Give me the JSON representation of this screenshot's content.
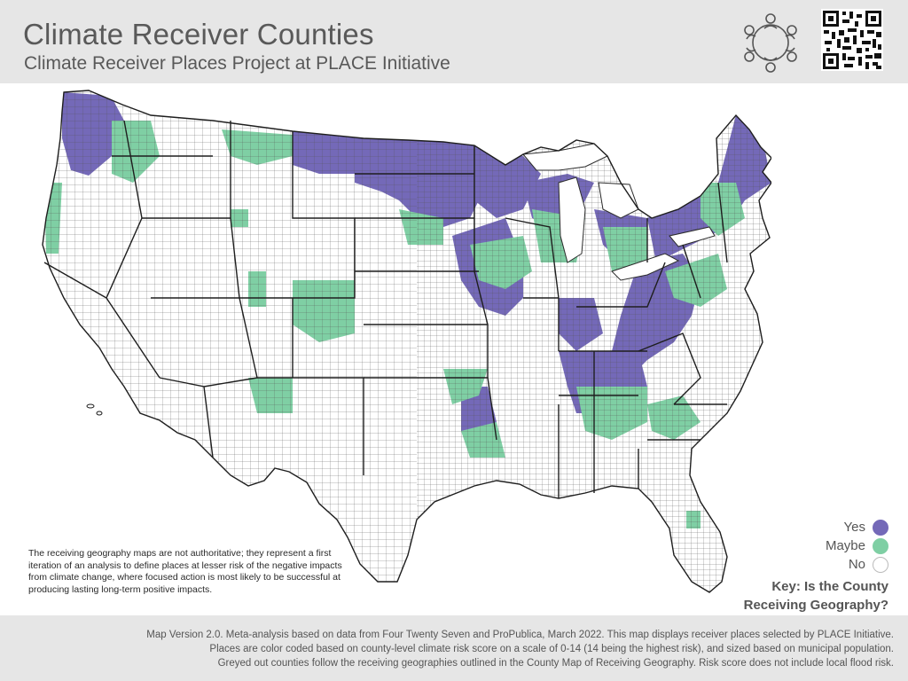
{
  "header": {
    "title": "Climate Receiver Counties",
    "subtitle": "Climate Receiver Places Project at PLACE Initiative",
    "logo_icon": "people-circle-logo-icon",
    "qr_icon": "qr-code-icon"
  },
  "map": {
    "region": "Contiguous United States",
    "colors": {
      "yes": "#7469b8",
      "maybe": "#7fcfa4",
      "no": "#ffffff",
      "borders": "#2b2b2b"
    }
  },
  "disclaimer": "The receiving geography maps are not authoritative; they represent a first iteration of an analysis to define places at lesser risk of the negative impacts from climate change, where focused action is most likely to be successful at producing lasting long-term positive impacts.",
  "legend": {
    "items": [
      {
        "label": "Yes",
        "color": "#7469b8"
      },
      {
        "label": "Maybe",
        "color": "#7fcfa4"
      },
      {
        "label": "No",
        "color": "#ffffff"
      }
    ],
    "key_line1": "Key: Is the County",
    "key_line2": "Receiving Geography?"
  },
  "footer": {
    "line1": "Map Version 2.0. Meta-analysis based on data from Four Twenty Seven and ProPublica, March 2022. This map displays receiver places selected by PLACE Initiative.",
    "line2": "Places are color coded based on county-level climate risk score on a scale of 0-14 (14 being the highest risk), and sized based on municipal population.",
    "line3": "Greyed out counties follow the receiving geographies outlined in the County Map of Receiving Geography. Risk score does not include local flood risk."
  }
}
